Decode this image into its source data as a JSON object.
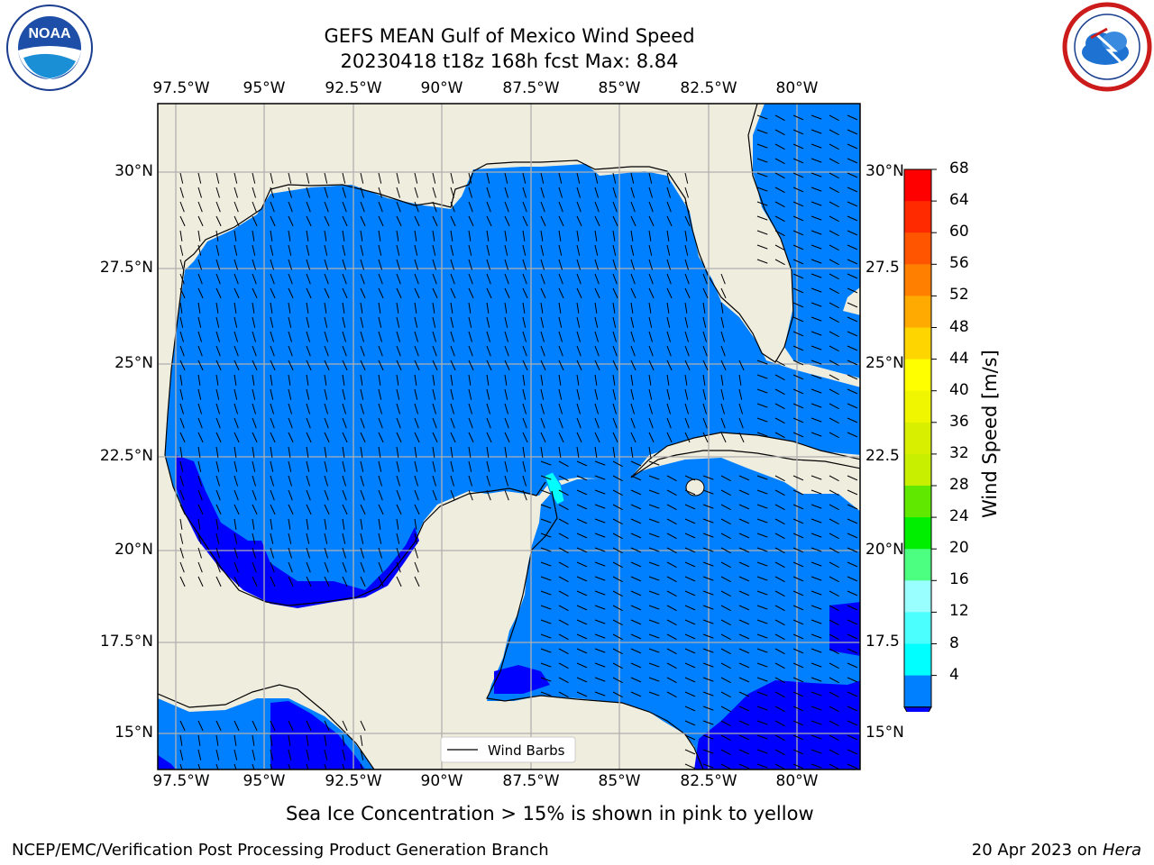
{
  "header": {
    "title_line1": "GEFS MEAN Gulf of Mexico Wind Speed",
    "title_line2": "20230418 t18z 168h fcst   Max: 8.84"
  },
  "logos": {
    "left": {
      "text": "NOAA",
      "ring_text": "NATIONAL OCEANIC AND ATMOSPHERIC ADMINISTRATION · U.S. DEPARTMENT OF COMMERCE"
    },
    "right": {
      "ring_text": "NATIONAL WEATHER SERVICE"
    }
  },
  "map": {
    "lon_labels": [
      "97.5°W",
      "95°W",
      "92.5°W",
      "90°W",
      "87.5°W",
      "85°W",
      "82.5°W",
      "80°W"
    ],
    "lat_labels": [
      "30°N",
      "27.5°N",
      "25°N",
      "22.5°N",
      "20°N",
      "17.5°N",
      "15°N"
    ],
    "right_lat_labels": [
      "30°N",
      "27.5",
      "25°N",
      "22.5",
      "20°N",
      "17.5",
      "15°N"
    ],
    "legend_label": "Wind Barbs",
    "colors": {
      "land": "#efedde",
      "ocean_light": "#0080ff",
      "ocean_dark": "#0000ff",
      "cyan": "#00ffff",
      "grid": "#b0b0b0"
    }
  },
  "colorbar": {
    "title": "Wind Speed [m/s]",
    "ticks": [
      "68",
      "64",
      "60",
      "56",
      "52",
      "48",
      "44",
      "40",
      "36",
      "32",
      "28",
      "24",
      "20",
      "16",
      "12",
      "8",
      "4"
    ],
    "colors": [
      "#ff0000",
      "#ff2a00",
      "#ff5500",
      "#ff8000",
      "#ffaa00",
      "#ffd500",
      "#ffff00",
      "#f0f600",
      "#d9ef00",
      "#c8ef00",
      "#60e800",
      "#00ee00",
      "#4cff80",
      "#99ffff",
      "#4cffff",
      "#00ffff",
      "#0080ff"
    ],
    "extend_color": "#0000ff"
  },
  "footer": {
    "note": "Sea Ice Concentration > 15% is shown in pink to yellow",
    "left": "NCEP/EMC/Verification Post Processing Product Generation Branch",
    "right_date": "20 Apr 2023 on",
    "right_host": "Hera"
  }
}
